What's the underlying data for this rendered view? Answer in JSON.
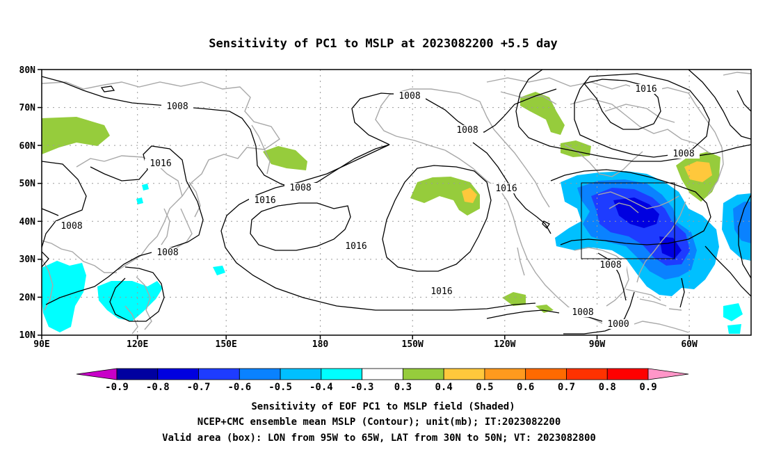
{
  "title": "Sensitivity of PC1 to MSLP at 2023082200 +5.5 day",
  "map": {
    "lat_labels": [
      "80N",
      "70N",
      "60N",
      "50N",
      "40N",
      "30N",
      "20N",
      "10N"
    ],
    "lon_labels": [
      "90E",
      "120E",
      "150E",
      "180",
      "150W",
      "120W",
      "90W",
      "60W"
    ],
    "contour_labels": [
      "1008",
      "1008",
      "1008",
      "1008",
      "1008",
      "1008",
      "1008",
      "1008",
      "1008",
      "1000",
      "1016",
      "1016",
      "1016",
      "1016",
      "1016",
      "1016"
    ],
    "box": {
      "lon_from": "95W",
      "lon_to": "65W",
      "lat_from": "30N",
      "lat_to": "50N"
    },
    "colors": {
      "land_outline": "#a8a8a8",
      "grid": "#9a9a9a",
      "contour": "#000000"
    }
  },
  "colorbar": {
    "labels": [
      "-0.9",
      "-0.8",
      "-0.7",
      "-0.6",
      "-0.5",
      "-0.4",
      "-0.3",
      "0.3",
      "0.4",
      "0.5",
      "0.6",
      "0.7",
      "0.8",
      "0.9"
    ],
    "colors": [
      "#c800c8",
      "#0000a0",
      "#0000e0",
      "#1e3cff",
      "#0a82ff",
      "#00c0ff",
      "#00ffff",
      "#ffffff",
      "#96cc3c",
      "#ffc83c",
      "#ff9a1e",
      "#ff6a00",
      "#ff3200",
      "#ff0000",
      "#ff96c8"
    ]
  },
  "captions": [
    "Sensitivity of EOF PC1 to MSLP field (Shaded)",
    "NCEP+CMC ensemble mean MSLP (Contour); unit(mb); IT:2023082200",
    "Valid area (box): LON from 95W to 65W, LAT from 30N to 50N; VT: 2023082800"
  ]
}
